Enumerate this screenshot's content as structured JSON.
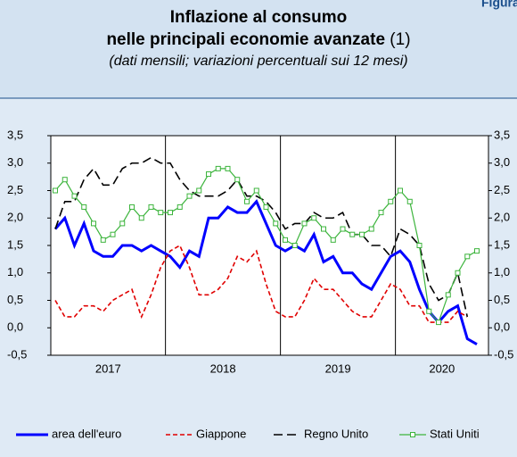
{
  "header": {
    "figure": "Figura"
  },
  "chart_data": {
    "type": "line",
    "title": [
      "Inflazione al consumo",
      "nelle principali economie avanzate"
    ],
    "title_note": "(1)",
    "subtitle": "(dati mensili; variazioni percentuali sui 12 mesi)",
    "year_labels": [
      "2017",
      "2018",
      "2019",
      "2020"
    ],
    "categories": [
      null,
      null,
      null,
      null,
      null,
      null,
      null,
      null,
      null,
      null,
      null,
      null,
      null,
      null,
      null,
      null,
      null,
      null,
      null,
      null,
      null,
      null,
      null,
      null,
      null,
      null,
      null,
      null,
      null,
      null,
      null,
      null,
      null,
      null,
      null,
      null,
      null,
      null,
      null,
      null,
      null,
      null,
      null,
      null,
      null
    ],
    "ylim": [
      -0.5,
      3.5
    ],
    "yticks": [
      {
        "value": -0.5,
        "label": "-0,5"
      },
      {
        "value": 0,
        "label": "0,0"
      },
      {
        "value": 0.5,
        "label": "0,5"
      },
      {
        "value": 1,
        "label": "1,0"
      },
      {
        "value": 1.5,
        "label": "1,5"
      },
      {
        "value": 2,
        "label": "2,0"
      },
      {
        "value": 2.5,
        "label": "2,5"
      },
      {
        "value": 3,
        "label": "3,0"
      },
      {
        "value": 3.5,
        "label": "3,5"
      }
    ],
    "series": [
      {
        "name": "area dell'euro",
        "color": "#0000ff",
        "style": "solid",
        "values": [
          1.8,
          2.0,
          1.5,
          1.9,
          1.4,
          1.3,
          1.3,
          1.5,
          1.5,
          1.4,
          1.5,
          1.4,
          1.3,
          1.1,
          1.4,
          1.3,
          2.0,
          2.0,
          2.2,
          2.1,
          2.1,
          2.3,
          1.9,
          1.5,
          1.4,
          1.5,
          1.4,
          1.7,
          1.2,
          1.3,
          1.0,
          1.0,
          0.8,
          0.7,
          1.0,
          1.3,
          1.4,
          1.2,
          0.7,
          0.3,
          0.1,
          0.3,
          0.4,
          -0.2,
          -0.3
        ]
      },
      {
        "name": "Giappone",
        "color": "#e00000",
        "style": "dashed",
        "values": [
          0.5,
          0.2,
          0.2,
          0.4,
          0.4,
          0.3,
          0.5,
          0.6,
          0.7,
          0.2,
          0.6,
          1.1,
          1.4,
          1.5,
          1.1,
          0.6,
          0.6,
          0.7,
          0.9,
          1.3,
          1.2,
          1.4,
          0.8,
          0.3,
          0.2,
          0.2,
          0.5,
          0.9,
          0.7,
          0.7,
          0.5,
          0.3,
          0.2,
          0.2,
          0.5,
          0.8,
          0.7,
          0.4,
          0.4,
          0.1,
          0.1,
          0.1,
          0.3,
          0.2,
          null
        ]
      },
      {
        "name": "Regno Unito",
        "color": "#000000",
        "style": "longdash",
        "values": [
          1.8,
          2.3,
          2.3,
          2.7,
          2.9,
          2.6,
          2.6,
          2.9,
          3.0,
          3.0,
          3.1,
          3.0,
          3.0,
          2.7,
          2.5,
          2.4,
          2.4,
          2.4,
          2.5,
          2.7,
          2.4,
          2.4,
          2.3,
          2.1,
          1.8,
          1.9,
          1.9,
          2.1,
          2.0,
          2.0,
          2.1,
          1.7,
          1.7,
          1.5,
          1.5,
          1.3,
          1.8,
          1.7,
          1.5,
          0.8,
          0.5,
          0.6,
          1.0,
          0.2,
          null
        ]
      },
      {
        "name": "Stati Uniti",
        "color": "#3cb43c",
        "style": "marker",
        "values": [
          2.5,
          2.7,
          2.4,
          2.2,
          1.9,
          1.6,
          1.7,
          1.9,
          2.2,
          2.0,
          2.2,
          2.1,
          2.1,
          2.2,
          2.4,
          2.5,
          2.8,
          2.9,
          2.9,
          2.7,
          2.3,
          2.5,
          2.2,
          1.9,
          1.6,
          1.5,
          1.9,
          2.0,
          1.8,
          1.6,
          1.8,
          1.7,
          1.7,
          1.8,
          2.1,
          2.3,
          2.5,
          2.3,
          1.5,
          0.3,
          0.1,
          0.6,
          1.0,
          1.3,
          1.4
        ]
      }
    ]
  }
}
